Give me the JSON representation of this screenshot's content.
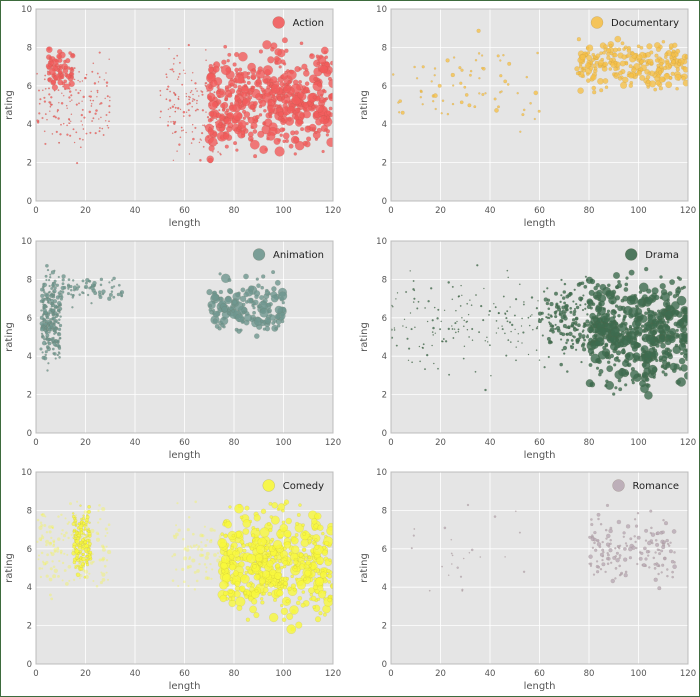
{
  "chart_data": [
    {
      "type": "scatter",
      "legend": "Action",
      "color": "#f15b5b",
      "xlabel": "length",
      "ylabel": "rating",
      "xlim": [
        0,
        120
      ],
      "ylim": [
        0,
        10
      ],
      "xticks": [
        "0",
        "20",
        "40",
        "60",
        "80",
        "100",
        "120"
      ],
      "yticks": [
        "0",
        "2",
        "4",
        "6",
        "8",
        "10"
      ],
      "grid": true,
      "legend_position": "top-right",
      "clusters": [
        {
          "x_range": [
            0,
            30
          ],
          "y_range": [
            1,
            9
          ],
          "density": "medium",
          "size": "tiny",
          "note": "vertical strips of small points"
        },
        {
          "x_range": [
            5,
            15
          ],
          "y_range": [
            5.5,
            8.5
          ],
          "density": "low",
          "size": "medium"
        },
        {
          "x_range": [
            50,
            75
          ],
          "y_range": [
            1,
            9
          ],
          "density": "medium",
          "size": "tiny"
        },
        {
          "x_range": [
            70,
            120
          ],
          "y_range": [
            1.5,
            9
          ],
          "density": "very high",
          "size": "large"
        }
      ]
    },
    {
      "type": "scatter",
      "legend": "Documentary",
      "color": "#f5c04a",
      "xlabel": "length",
      "ylabel": "rating",
      "xlim": [
        0,
        120
      ],
      "ylim": [
        0,
        10
      ],
      "xticks": [
        "0",
        "20",
        "40",
        "60",
        "80",
        "100",
        "120"
      ],
      "yticks": [
        "0",
        "2",
        "4",
        "6",
        "8",
        "10"
      ],
      "grid": true,
      "legend_position": "top-right",
      "clusters": [
        {
          "x_range": [
            0,
            60
          ],
          "y_range": [
            2,
            9.5
          ],
          "density": "low",
          "size": "small"
        },
        {
          "x_range": [
            75,
            120
          ],
          "y_range": [
            5.5,
            8.8
          ],
          "density": "high",
          "size": "medium"
        }
      ]
    },
    {
      "type": "scatter",
      "legend": "Animation",
      "color": "#6e968e",
      "xlabel": "length",
      "ylabel": "rating",
      "xlim": [
        0,
        120
      ],
      "ylim": [
        0,
        10
      ],
      "xticks": [
        "0",
        "20",
        "40",
        "60",
        "80",
        "100",
        "120"
      ],
      "yticks": [
        "0",
        "2",
        "4",
        "6",
        "8",
        "10"
      ],
      "grid": true,
      "legend_position": "top-right",
      "clusters": [
        {
          "x_range": [
            2,
            10
          ],
          "y_range": [
            3,
            9
          ],
          "density": "high",
          "size": "small"
        },
        {
          "x_range": [
            10,
            35
          ],
          "y_range": [
            6.5,
            8.5
          ],
          "density": "low",
          "size": "small"
        },
        {
          "x_range": [
            70,
            100
          ],
          "y_range": [
            4.5,
            8.5
          ],
          "density": "medium",
          "size": "large"
        }
      ]
    },
    {
      "type": "scatter",
      "legend": "Drama",
      "color": "#3d6b4f",
      "xlabel": "length",
      "ylabel": "rating",
      "xlim": [
        0,
        120
      ],
      "ylim": [
        0,
        10
      ],
      "xticks": [
        "0",
        "20",
        "40",
        "60",
        "80",
        "100",
        "120"
      ],
      "yticks": [
        "0",
        "2",
        "4",
        "6",
        "8",
        "10"
      ],
      "grid": true,
      "legend_position": "top-right",
      "clusters": [
        {
          "x_range": [
            0,
            60
          ],
          "y_range": [
            2,
            9.5
          ],
          "density": "medium",
          "size": "tiny"
        },
        {
          "x_range": [
            60,
            80
          ],
          "y_range": [
            3,
            9
          ],
          "density": "medium",
          "size": "small"
        },
        {
          "x_range": [
            80,
            120
          ],
          "y_range": [
            1.5,
            9
          ],
          "density": "very high",
          "size": "large"
        }
      ]
    },
    {
      "type": "scatter",
      "legend": "Comedy",
      "color": "#f7f73b",
      "xlabel": "length",
      "ylabel": "rating",
      "xlim": [
        0,
        120
      ],
      "ylim": [
        0,
        10
      ],
      "xticks": [
        "0",
        "20",
        "40",
        "60",
        "80",
        "100",
        "120"
      ],
      "yticks": [
        "0",
        "2",
        "4",
        "6",
        "8",
        "10"
      ],
      "grid": true,
      "legend_position": "top-right",
      "clusters": [
        {
          "x_range": [
            0,
            30
          ],
          "y_range": [
            3,
            9
          ],
          "density": "medium",
          "size": "small",
          "note": "pale"
        },
        {
          "x_range": [
            15,
            22
          ],
          "y_range": [
            4,
            8.5
          ],
          "density": "medium",
          "size": "small"
        },
        {
          "x_range": [
            55,
            75
          ],
          "y_range": [
            3,
            9
          ],
          "density": "low",
          "size": "small",
          "note": "pale"
        },
        {
          "x_range": [
            75,
            120
          ],
          "y_range": [
            1.5,
            9
          ],
          "density": "very high",
          "size": "large"
        }
      ]
    },
    {
      "type": "scatter",
      "legend": "Romance",
      "color": "#b8a9b4",
      "xlabel": "length",
      "ylabel": "rating",
      "xlim": [
        0,
        120
      ],
      "ylim": [
        0,
        10
      ],
      "xticks": [
        "0",
        "20",
        "40",
        "60",
        "80",
        "100",
        "120"
      ],
      "yticks": [
        "0",
        "2",
        "4",
        "6",
        "8",
        "10"
      ],
      "grid": true,
      "legend_position": "top-right",
      "clusters": [
        {
          "x_range": [
            0,
            60
          ],
          "y_range": [
            2,
            9
          ],
          "density": "very low",
          "size": "tiny"
        },
        {
          "x_range": [
            80,
            115
          ],
          "y_range": [
            3.5,
            8.5
          ],
          "density": "medium",
          "size": "small"
        }
      ]
    }
  ]
}
